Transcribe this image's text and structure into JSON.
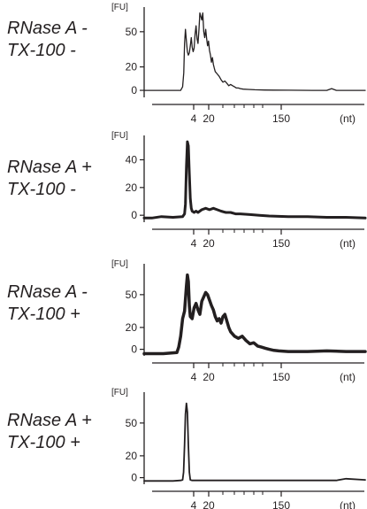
{
  "colors": {
    "ink": "#231f20",
    "background": "#ffffff"
  },
  "chart_data": [
    {
      "type": "line",
      "condition": [
        "RNase A -",
        "TX-100 -"
      ],
      "ylabel": "[FU]",
      "xlabel": "(nt)",
      "x_ticks": [
        "4",
        "20",
        "150"
      ],
      "y_ticks": [
        0,
        20,
        50
      ],
      "ylim": [
        -6,
        68
      ],
      "x": [
        0,
        38,
        40,
        41.2,
        42,
        43,
        44,
        45,
        46,
        47,
        48,
        49,
        50,
        51,
        52,
        53,
        54,
        55,
        56,
        57,
        58,
        59,
        60,
        61,
        62,
        63,
        64,
        65,
        66,
        67,
        68,
        69,
        70,
        71,
        72,
        73,
        74,
        76,
        78,
        80,
        82,
        84,
        86,
        88,
        90,
        92,
        94,
        96,
        98,
        100,
        103,
        108,
        115,
        125,
        135,
        150,
        175,
        190,
        195,
        200,
        230
      ],
      "series": [
        {
          "values": [
            0,
            0,
            3,
            15,
            40,
            52,
            42,
            33,
            30,
            32,
            38,
            45,
            37,
            33,
            36,
            48,
            55,
            44,
            40,
            52,
            66,
            63,
            60,
            66,
            50,
            45,
            52,
            44,
            38,
            42,
            34,
            30,
            24,
            28,
            22,
            19,
            16,
            14,
            12,
            9,
            7,
            8,
            6,
            4,
            5,
            4,
            3,
            2,
            2,
            1.5,
            1,
            0.8,
            0.5,
            0.3,
            0.2,
            0.1,
            0,
            0,
            1.5,
            0,
            0
          ],
          "width": 1.3
        }
      ]
    },
    {
      "type": "line",
      "condition": [
        "RNase A +",
        "TX-100 -"
      ],
      "ylabel": "[FU]",
      "xlabel": "(nt)",
      "x_ticks": [
        "4",
        "20",
        "150"
      ],
      "y_ticks": [
        0,
        20,
        40
      ],
      "ylim": [
        -5,
        55
      ],
      "x": [
        0,
        8,
        18,
        30,
        40,
        42,
        43,
        44,
        45,
        46,
        47,
        48,
        49,
        50,
        52,
        54,
        56,
        60,
        64,
        68,
        72,
        76,
        80,
        85,
        90,
        95,
        100,
        110,
        120,
        130,
        150,
        170,
        190,
        210,
        230
      ],
      "series": [
        {
          "values": [
            -2,
            -2,
            -1,
            -1.5,
            -1,
            1,
            8,
            35,
            53,
            50,
            30,
            12,
            5,
            3,
            2,
            3,
            2,
            4,
            5,
            4,
            5,
            4,
            3,
            2,
            2,
            1,
            1,
            0.5,
            0,
            -0.5,
            -1,
            -1,
            -1.5,
            -1.5,
            -2
          ],
          "width": 3
        }
      ]
    },
    {
      "type": "line",
      "condition": [
        "RNase A -",
        "TX-100 +"
      ],
      "ylabel": "[FU]",
      "xlabel": "(nt)",
      "x_ticks": [
        "4",
        "20",
        "150"
      ],
      "y_ticks": [
        0,
        20,
        50
      ],
      "ylim": [
        -6,
        75
      ],
      "x": [
        0,
        20,
        34,
        36,
        38,
        40,
        42,
        44,
        45,
        46,
        47,
        48,
        50,
        52,
        54,
        56,
        58,
        60,
        62,
        64,
        66,
        68,
        70,
        72,
        74,
        76,
        78,
        80,
        82,
        84,
        86,
        88,
        90,
        94,
        98,
        102,
        106,
        110,
        114,
        118,
        122,
        126,
        130,
        135,
        140,
        150,
        170,
        190,
        210,
        230
      ],
      "series": [
        {
          "values": [
            -4,
            -4,
            -3,
            2,
            12,
            28,
            35,
            58,
            68,
            62,
            40,
            30,
            28,
            38,
            42,
            36,
            32,
            44,
            48,
            52,
            50,
            45,
            40,
            36,
            30,
            26,
            28,
            24,
            30,
            32,
            26,
            20,
            16,
            12,
            10,
            12,
            8,
            5,
            6,
            3,
            2,
            1,
            0,
            -1,
            -1.5,
            -2,
            -2,
            -1.5,
            -2,
            -2
          ],
          "width": 3.5
        }
      ]
    },
    {
      "type": "line",
      "condition": [
        "RNase A +",
        "TX-100 +"
      ],
      "ylabel": "[FU]",
      "xlabel": "(nt)",
      "x_ticks": [
        "4",
        "20",
        "150"
      ],
      "y_ticks": [
        0,
        20,
        50
      ],
      "ylim": [
        -6,
        75
      ],
      "x": [
        0,
        30,
        38,
        40,
        41,
        42,
        43,
        44,
        45,
        46,
        47,
        48,
        50,
        55,
        70,
        100,
        150,
        200,
        210,
        230
      ],
      "series": [
        {
          "values": [
            -3,
            -3,
            -2.5,
            -2,
            5,
            30,
            58,
            68,
            60,
            30,
            5,
            -2,
            -2.5,
            -2.5,
            -2.5,
            -2.5,
            -2.5,
            -2.5,
            -1,
            -2
          ],
          "width": 1.8
        }
      ]
    }
  ]
}
